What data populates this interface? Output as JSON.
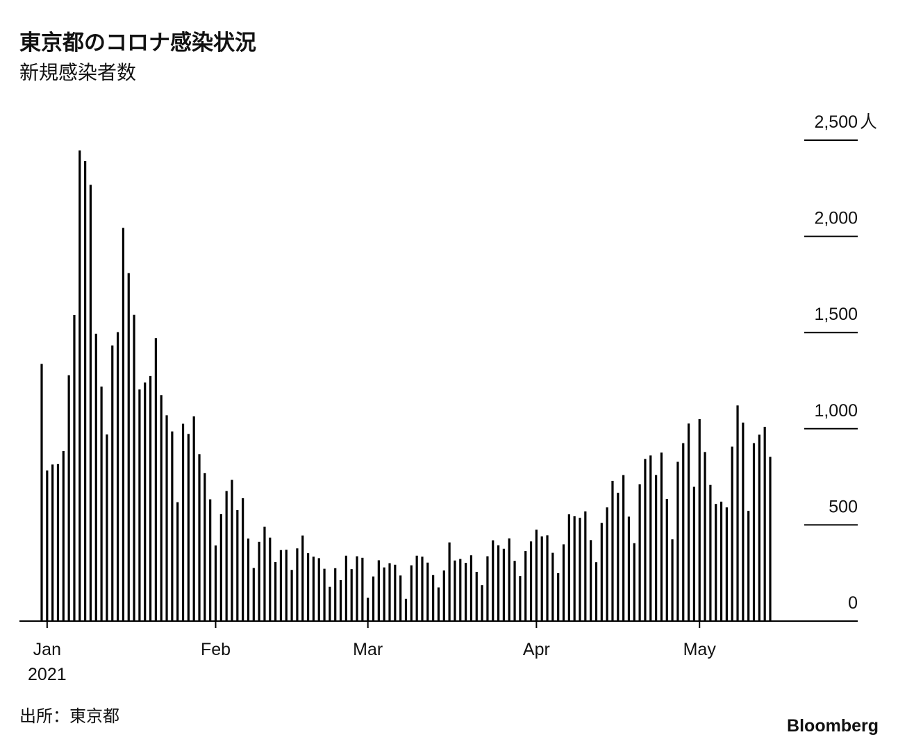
{
  "chart_data": {
    "type": "bar",
    "title": "東京都のコロナ感染状況",
    "subtitle": "新規感染者数",
    "source": "出所：東京都",
    "brand": "Bloomberg",
    "year": "2021",
    "y_unit": "人",
    "color": "#000000",
    "categories": [
      null,
      "Jan",
      null,
      null,
      null,
      null,
      null,
      null,
      null,
      null,
      null,
      null,
      null,
      null,
      null,
      null,
      null,
      null,
      null,
      null,
      null,
      null,
      null,
      null,
      null,
      null,
      null,
      null,
      null,
      null,
      null,
      null,
      "Feb",
      null,
      null,
      null,
      null,
      null,
      null,
      null,
      null,
      null,
      null,
      null,
      null,
      null,
      null,
      null,
      null,
      null,
      null,
      null,
      null,
      null,
      null,
      null,
      null,
      null,
      null,
      null,
      "Mar",
      null,
      null,
      null,
      null,
      null,
      null,
      null,
      null,
      null,
      null,
      null,
      null,
      null,
      null,
      null,
      null,
      null,
      null,
      null,
      null,
      null,
      null,
      null,
      null,
      null,
      null,
      null,
      null,
      null,
      null,
      "Apr",
      null,
      null,
      null,
      null,
      null,
      null,
      null,
      null,
      null,
      null,
      null,
      null,
      null,
      null,
      null,
      null,
      null,
      null,
      null,
      null,
      null,
      null,
      null,
      null,
      null,
      null,
      null,
      null,
      null,
      "May",
      null,
      null,
      null,
      null,
      null,
      null,
      null,
      null,
      null,
      null,
      null,
      null,
      null
    ],
    "values": [
      1337,
      783,
      814,
      816,
      884,
      1278,
      1591,
      2447,
      2392,
      2268,
      1494,
      1219,
      970,
      1433,
      1502,
      2044,
      1809,
      1592,
      1204,
      1240,
      1274,
      1471,
      1175,
      1070,
      986,
      618,
      1026,
      973,
      1064,
      868,
      769,
      633,
      393,
      556,
      676,
      734,
      577,
      639,
      429,
      276,
      412,
      491,
      434,
      307,
      369,
      371,
      266,
      378,
      445,
      353,
      335,
      327,
      272,
      178,
      275,
      213,
      340,
      270,
      337,
      329,
      121,
      232,
      316,
      279,
      301,
      293,
      237,
      116,
      290,
      340,
      335,
      304,
      239,
      175,
      263,
      409,
      315,
      323,
      303,
      342,
      256,
      187,
      337,
      420,
      394,
      376,
      430,
      313,
      234,
      364,
      414,
      475,
      440,
      446,
      355,
      249,
      399,
      555,
      545,
      537,
      570,
      421,
      306,
      510,
      591,
      729,
      667,
      759,
      543,
      405,
      711,
      843,
      861,
      759,
      876,
      635,
      425,
      828,
      925,
      1027,
      698,
      1050,
      879,
      708,
      609,
      621,
      591,
      907,
      1121,
      1032,
      573,
      925,
      969,
      1010,
      854
    ],
    "ylim": [
      0,
      2500
    ],
    "yticks": [
      0,
      500,
      {
        "value": 1000,
        "label": "1,000"
      },
      {
        "value": 1500,
        "label": "1,500"
      },
      {
        "value": 2000,
        "label": "2,000"
      },
      {
        "value": 2500,
        "label": "2,500"
      }
    ],
    "grid": true
  }
}
